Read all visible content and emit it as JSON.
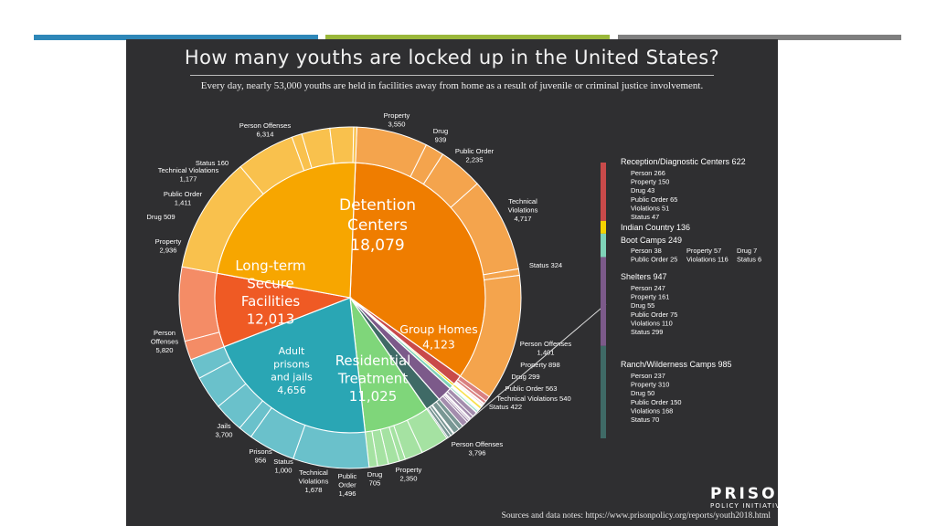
{
  "colors": {
    "slide_background": "#ffffff",
    "panel_background": "#2f2f31",
    "bar_blue": "#2e87b8",
    "bar_green": "#9ab73a",
    "bar_gray": "#7f7f7f",
    "detention": "#ef7d00",
    "secure": "#f7a600",
    "adult": "#ef5a24",
    "residential": "#2aa6b4",
    "group_homes": "#7fd67a",
    "reception": "#c94a4a",
    "indian": "#f5d200",
    "boot": "#7fd3b8",
    "shelters": "#7c5a8a",
    "ranch": "#3f6a66"
  },
  "header": {
    "title": "How many youths are locked up in the United States?",
    "subtitle": "Every day, nearly 53,000 youths are held in facilities away from home as a result of juvenile or criminal justice involvement."
  },
  "footer": {
    "source": "Sources and data notes: https://www.prisonpolicy.org/reports/youth2018.html",
    "logo_big": "PRISON",
    "logo_small": "POLICY INITIATIVE"
  },
  "chart_data": {
    "type": "pie",
    "facilities": [
      {
        "name": "Detention Centers",
        "label_lines": [
          "Detention",
          "Centers",
          "18,079"
        ],
        "value": 18079,
        "color": "#ef7d00",
        "subcategories": [
          {
            "name": "Property",
            "value": 3550,
            "label_lines": [
              "Property",
              "3,550"
            ]
          },
          {
            "name": "Drug",
            "value": 939,
            "label_lines": [
              "Drug",
              "939"
            ]
          },
          {
            "name": "Public Order",
            "value": 2235,
            "label_lines": [
              "Public Order",
              "2,235"
            ]
          },
          {
            "name": "Technical Violations",
            "value": 4717,
            "label_lines": [
              "Technical",
              "Violations",
              "4,717"
            ]
          },
          {
            "name": "Status",
            "value": 324,
            "label_lines": [
              "Status 324"
            ]
          },
          {
            "name": "Person Offenses",
            "value": 6314,
            "label_lines": [
              "Person Offenses",
              "6,314"
            ]
          }
        ]
      },
      {
        "name": "Reception/Diagnostic Centers",
        "value": 622,
        "color": "#c94a4a",
        "subcategories": [
          {
            "name": "Person",
            "value": 266
          },
          {
            "name": "Property",
            "value": 150
          },
          {
            "name": "Drug",
            "value": 43
          },
          {
            "name": "Public Order",
            "value": 65
          },
          {
            "name": "Violations",
            "value": 51
          },
          {
            "name": "Status",
            "value": 47
          }
        ]
      },
      {
        "name": "Indian Country",
        "value": 136,
        "color": "#f5d200",
        "subcategories": []
      },
      {
        "name": "Boot Camps",
        "value": 249,
        "color": "#7fd3b8",
        "subcategories": [
          {
            "name": "Person",
            "value": 38
          },
          {
            "name": "Public Order",
            "value": 25
          },
          {
            "name": "Property",
            "value": 57
          },
          {
            "name": "Violations",
            "value": 116
          },
          {
            "name": "Drug",
            "value": 7
          },
          {
            "name": "Status",
            "value": 6
          }
        ]
      },
      {
        "name": "Shelters",
        "value": 947,
        "color": "#7c5a8a",
        "subcategories": [
          {
            "name": "Person",
            "value": 247
          },
          {
            "name": "Property",
            "value": 161
          },
          {
            "name": "Drug",
            "value": 55
          },
          {
            "name": "Public Order",
            "value": 75
          },
          {
            "name": "Violations",
            "value": 110
          },
          {
            "name": "Status",
            "value": 299
          }
        ]
      },
      {
        "name": "Ranch/Wilderness Camps",
        "value": 985,
        "color": "#3f6a66",
        "subcategories": [
          {
            "name": "Person",
            "value": 237
          },
          {
            "name": "Property",
            "value": 310
          },
          {
            "name": "Drug",
            "value": 50
          },
          {
            "name": "Public Order",
            "value": 150
          },
          {
            "name": "Violations",
            "value": 168
          },
          {
            "name": "Status",
            "value": 70
          }
        ]
      },
      {
        "name": "Group Homes",
        "label_lines": [
          "Group Homes",
          "4,123"
        ],
        "value": 4123,
        "color": "#7fd67a",
        "subcategories": [
          {
            "name": "Person Offenses",
            "value": 1401,
            "label_lines": [
              "Person Offenses",
              "1,401"
            ]
          },
          {
            "name": "Property",
            "value": 898,
            "label_lines": [
              "Property 898"
            ]
          },
          {
            "name": "Drug",
            "value": 299,
            "label_lines": [
              "Drug 299"
            ]
          },
          {
            "name": "Public Order",
            "value": 563,
            "label_lines": [
              "Public Order 563"
            ]
          },
          {
            "name": "Technical Violations",
            "value": 540,
            "label_lines": [
              "Technical Violations 540"
            ]
          },
          {
            "name": "Status",
            "value": 422,
            "label_lines": [
              "Status 422"
            ]
          }
        ]
      },
      {
        "name": "Residential Treatment",
        "label_lines": [
          "Residential",
          "Treatment",
          "11,025"
        ],
        "value": 11025,
        "color": "#2aa6b4",
        "subcategories": [
          {
            "name": "Person Offenses",
            "value": 3796,
            "label_lines": [
              "Person Offenses",
              "3,796"
            ]
          },
          {
            "name": "Property",
            "value": 2350,
            "label_lines": [
              "Property",
              "2,350"
            ]
          },
          {
            "name": "Drug",
            "value": 705,
            "label_lines": [
              "Drug",
              "705"
            ]
          },
          {
            "name": "Public Order",
            "value": 1496,
            "label_lines": [
              "Public",
              "Order",
              "1,496"
            ]
          },
          {
            "name": "Technical Violations",
            "value": 1678,
            "label_lines": [
              "Technical",
              "Violations",
              "1,678"
            ]
          },
          {
            "name": "Status",
            "value": 1000,
            "label_lines": [
              "Status",
              "1,000"
            ]
          }
        ]
      },
      {
        "name": "Adult prisons and jails",
        "label_lines": [
          "Adult",
          "prisons",
          "and jails",
          "4,656"
        ],
        "value": 4656,
        "color": "#ef5a24",
        "subcategories": [
          {
            "name": "Prisons",
            "value": 956,
            "label_lines": [
              "Prisons",
              "956"
            ]
          },
          {
            "name": "Jails",
            "value": 3700,
            "label_lines": [
              "Jails",
              "3,700"
            ]
          }
        ]
      },
      {
        "name": "Long-term Secure Facilities",
        "label_lines": [
          "Long-term",
          "Secure",
          "Facilities",
          "12,013"
        ],
        "value": 12013,
        "color": "#f7a600",
        "subcategories": [
          {
            "name": "Person Offenses",
            "value": 5820,
            "label_lines": [
              "Person",
              "Offenses",
              "5,820"
            ]
          },
          {
            "name": "Property",
            "value": 2936,
            "label_lines": [
              "Property",
              "2,936"
            ]
          },
          {
            "name": "Drug",
            "value": 509,
            "label_lines": [
              "Drug 509"
            ]
          },
          {
            "name": "Public Order",
            "value": 1411,
            "label_lines": [
              "Public Order",
              "1,411"
            ]
          },
          {
            "name": "Technical Violations",
            "value": 1177,
            "label_lines": [
              "Technical Violations",
              "1,177"
            ]
          },
          {
            "name": "Status",
            "value": 160,
            "label_lines": [
              "Status 160"
            ]
          }
        ]
      }
    ],
    "legend_panel": {
      "reception": {
        "heading": "Reception/Diagnostic Centers 622",
        "lines": [
          "Person 266",
          "Property 150",
          "Drug 43",
          "Public Order 65",
          "Violations 51",
          "Status 47"
        ]
      },
      "indian": {
        "heading": "Indian Country 136"
      },
      "boot": {
        "heading": "Boot Camps 249",
        "col1": [
          "Person 38",
          "Public Order 25"
        ],
        "col2": [
          "Property 57",
          "Violations 116"
        ],
        "col3": [
          "Drug 7",
          "Status 6"
        ]
      },
      "shelters": {
        "heading": "Shelters 947",
        "lines": [
          "Person 247",
          "Property 161",
          "Drug 55",
          "Public Order 75",
          "Violations 110",
          "Status 299"
        ]
      },
      "ranch": {
        "heading": "Ranch/Wilderness Camps 985",
        "lines": [
          "Person 237",
          "Property 310",
          "Drug 50",
          "Public Order 150",
          "Violations 168",
          "Status 70"
        ]
      }
    }
  }
}
